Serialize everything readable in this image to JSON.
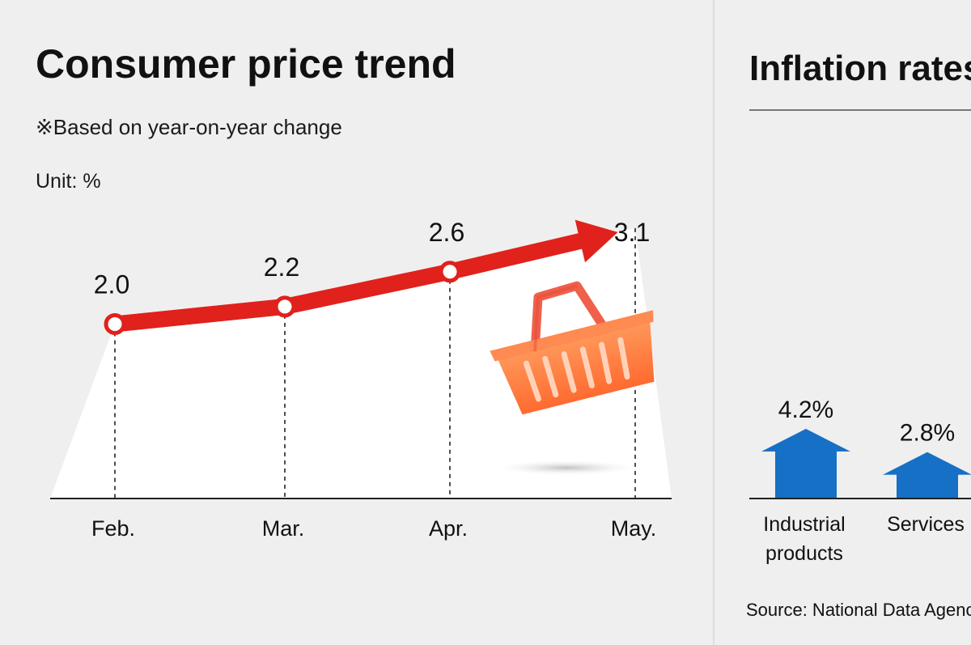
{
  "chart_data": [
    {
      "type": "line",
      "title": "Consumer price trend",
      "subtitle": "※Based on year-on-year change",
      "unit": "Unit: %",
      "categories": [
        "Feb.",
        "Mar.",
        "Apr.",
        "May."
      ],
      "values": [
        2.0,
        2.2,
        2.6,
        3.1
      ],
      "value_labels": [
        "2.0",
        "2.2",
        "2.6",
        "3.1"
      ],
      "ylim": [
        0,
        3.6
      ],
      "grid": false,
      "colors": {
        "line": "#e0211c",
        "marker_fill": "#ffffff"
      },
      "icon": "shopping-basket-icon"
    },
    {
      "type": "bar",
      "title": "Inflation rates",
      "categories": [
        "Industrial products",
        "Services"
      ],
      "category_lines": [
        [
          "Industrial",
          "products"
        ],
        [
          "Services"
        ]
      ],
      "values": [
        4.2,
        2.8
      ],
      "value_labels": [
        "4.2%",
        "2.8%"
      ],
      "colors": {
        "arrow": "#1670c5"
      },
      "icon": "up-arrow-icon"
    }
  ],
  "source": "Source: National Data Agency"
}
